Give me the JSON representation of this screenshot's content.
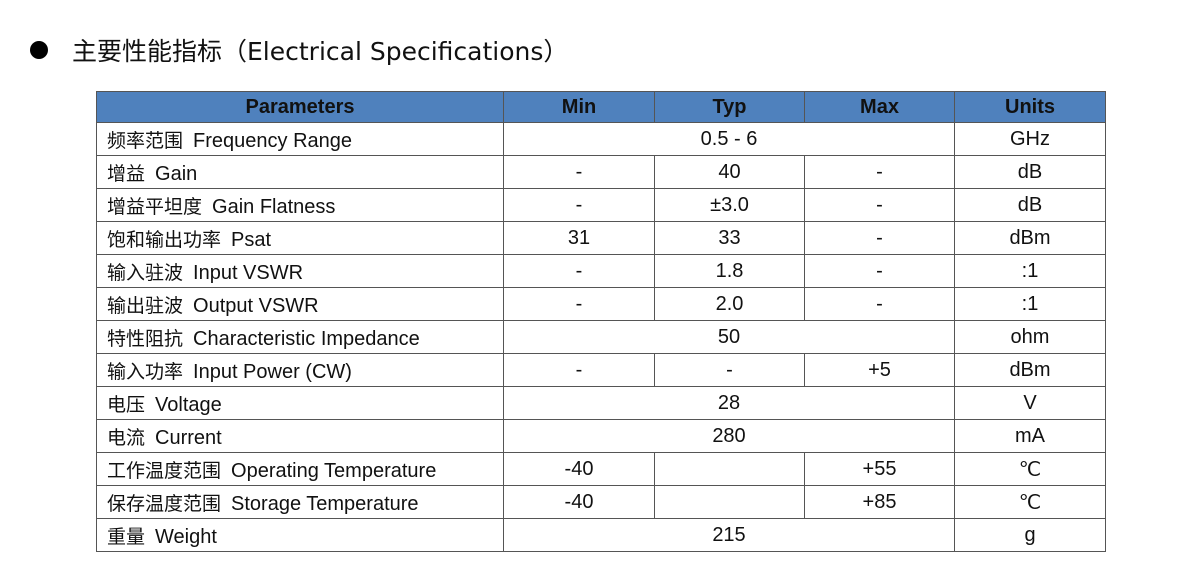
{
  "heading": "主要性能指标（Electrical Specifications）",
  "table": {
    "columns": [
      "Parameters",
      "Min",
      "Typ",
      "Max",
      "Units"
    ],
    "rows": [
      {
        "cn": "频率范围",
        "en": "Frequency Range",
        "values": [
          "0.5 - 6"
        ],
        "units": "GHz"
      },
      {
        "cn": "增益",
        "en": "Gain",
        "values": [
          "-",
          "40",
          "-"
        ],
        "units": "dB"
      },
      {
        "cn": "增益平坦度",
        "en": "Gain Flatness",
        "values": [
          "-",
          "±3.0",
          "-"
        ],
        "units": "dB"
      },
      {
        "cn": "饱和输出功率",
        "en": "Psat",
        "values": [
          "31",
          "33",
          "-"
        ],
        "units": "dBm"
      },
      {
        "cn": "输入驻波",
        "en": "Input VSWR",
        "values": [
          "-",
          "1.8",
          "-"
        ],
        "units": ":1"
      },
      {
        "cn": "输出驻波",
        "en": "Output VSWR",
        "values": [
          "-",
          "2.0",
          "-"
        ],
        "units": ":1"
      },
      {
        "cn": "特性阻抗",
        "en": "Characteristic Impedance",
        "values": [
          "50"
        ],
        "units": "ohm"
      },
      {
        "cn": "输入功率",
        "en": "Input Power (CW)",
        "values": [
          "-",
          "-",
          "+5"
        ],
        "units": "dBm"
      },
      {
        "cn": "电压",
        "en": "Voltage",
        "values": [
          "28"
        ],
        "units": "V"
      },
      {
        "cn": "电流",
        "en": "Current",
        "values": [
          "280"
        ],
        "units": "mA"
      },
      {
        "cn": "工作温度范围",
        "en": "Operating Temperature",
        "values": [
          "-40",
          null,
          "+55"
        ],
        "units": "℃"
      },
      {
        "cn": "保存温度范围",
        "en": "Storage Temperature",
        "values": [
          "-40",
          null,
          "+85"
        ],
        "units": "℃"
      },
      {
        "cn": "重量",
        "en": "Weight",
        "values": [
          "215"
        ],
        "units": "g"
      }
    ]
  }
}
